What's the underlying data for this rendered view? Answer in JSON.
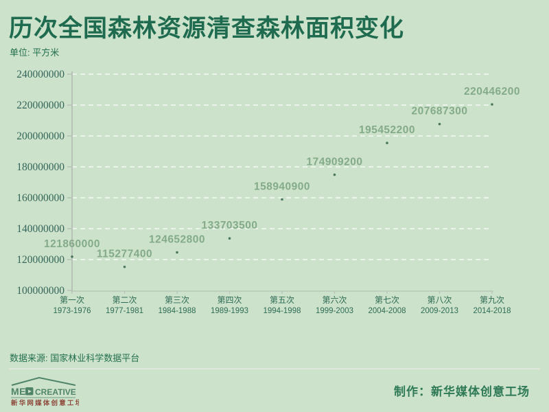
{
  "header": {
    "title": "历次全国森林资源清查森林面积变化",
    "unit": "单位: 平方米"
  },
  "chart_data": {
    "type": "scatter",
    "title": "历次全国森林资源清查森林面积变化",
    "ylabel": "平方米",
    "xlabel": "",
    "ylim": [
      100000000,
      240000000
    ],
    "y_ticks": [
      100000000,
      120000000,
      140000000,
      160000000,
      180000000,
      200000000,
      220000000,
      240000000
    ],
    "categories": [
      "第一次",
      "第二次",
      "第三次",
      "第四次",
      "第五次",
      "第六次",
      "第七次",
      "第八次",
      "第九次"
    ],
    "periods": [
      "1973-1976",
      "1977-1981",
      "1984-1988",
      "1989-1993",
      "1994-1998",
      "1999-2003",
      "2004-2008",
      "2009-2013",
      "2014-2018"
    ],
    "values": [
      121860000,
      115277400,
      124652800,
      133703500,
      158940900,
      174909200,
      195452200,
      207687300,
      220446200
    ],
    "grid": "horizontal-dashed",
    "legend": "none"
  },
  "footer": {
    "source": "数据来源: 国家林业科学数据平台",
    "credit": "制作：新华媒体创意工场"
  },
  "logo": {
    "brand_left": "ME",
    "brand_right": "CREATIVE",
    "tagline": "新华网媒体创意工场"
  },
  "colors": {
    "background": "#cce2ca",
    "title": "#1e6b4f",
    "axis_text": "#33655a",
    "x_axis_text": "#2e6b55",
    "data_label": "#84ab89",
    "grid": "#ffffff",
    "axis_line": "#b6c2b6",
    "dot": "#3f6b54",
    "source_text": "#257050",
    "credit_text": "#2e7a56",
    "logo_green": "#4f8468",
    "logo_red": "#8e4a3d",
    "divider": "#e2e7e1"
  }
}
